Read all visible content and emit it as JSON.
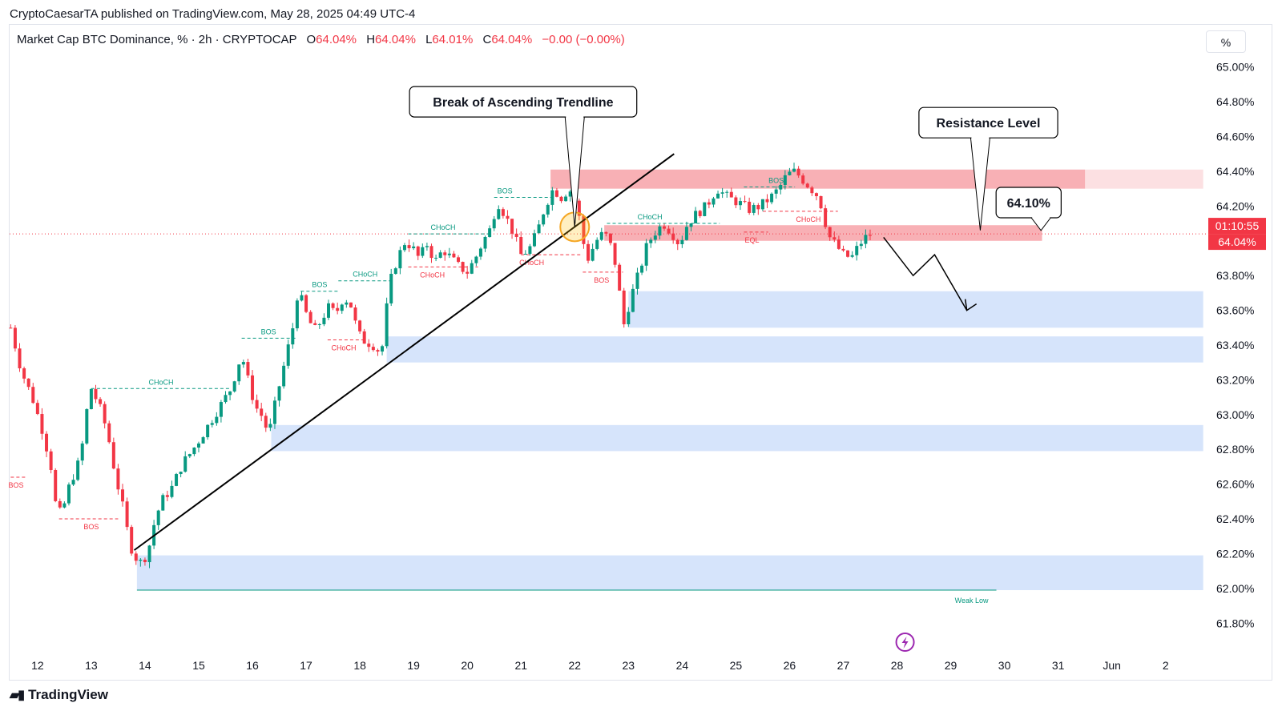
{
  "header": {
    "published": "CryptoCaesarTA published on TradingView.com, May 28, 2025 04:49 UTC-4"
  },
  "legend": {
    "symbol": "Market Cap BTC Dominance, % · 2h · CRYPTOCAP",
    "o_key": "O",
    "o": "64.04%",
    "h_key": "H",
    "h": "64.04%",
    "l_key": "L",
    "l": "64.01%",
    "c_key": "C",
    "c": "64.04%",
    "change": "−0.00 (−0.00%)"
  },
  "scale_button": "%",
  "footer": {
    "logo_text": "TradingView"
  },
  "colors": {
    "up": "#089981",
    "down": "#f23645",
    "supply_zone": "#f7a7ad",
    "demand_zone": "#d6e4fb",
    "trendline": "#000000"
  },
  "chart_data": {
    "type": "candlestick",
    "symbol": "CRYPTOCAP:BTC.D",
    "interval": "2h",
    "ylim": [
      61.7,
      65.1
    ],
    "y_ticks": [
      "65.00%",
      "64.80%",
      "64.60%",
      "64.40%",
      "64.20%",
      "64.00%",
      "63.80%",
      "63.60%",
      "63.40%",
      "63.20%",
      "63.00%",
      "62.80%",
      "62.60%",
      "62.40%",
      "62.20%",
      "62.00%",
      "61.80%"
    ],
    "y_tick_values": [
      65.0,
      64.8,
      64.6,
      64.4,
      64.2,
      64.0,
      63.8,
      63.6,
      63.4,
      63.2,
      63.0,
      62.8,
      62.6,
      62.4,
      62.2,
      62.0,
      61.8
    ],
    "x_ticks": [
      "12",
      "13",
      "14",
      "15",
      "16",
      "17",
      "18",
      "19",
      "20",
      "21",
      "22",
      "23",
      "24",
      "25",
      "26",
      "27",
      "28",
      "29",
      "30",
      "31",
      "Jun",
      "2"
    ],
    "x_tick_days": [
      12,
      13,
      14,
      15,
      16,
      17,
      18,
      19,
      20,
      21,
      22,
      23,
      24,
      25,
      26,
      27,
      28,
      29,
      30,
      31,
      32,
      33
    ],
    "xlim": [
      11.48,
      33.75
    ],
    "price_path": [
      [
        11.5,
        63.5
      ],
      [
        11.7,
        63.25
      ],
      [
        11.9,
        63.1
      ],
      [
        12.1,
        62.9
      ],
      [
        12.25,
        62.7
      ],
      [
        12.35,
        62.45
      ],
      [
        12.45,
        62.43
      ],
      [
        12.6,
        62.6
      ],
      [
        12.8,
        62.75
      ],
      [
        12.95,
        63.1
      ],
      [
        13.0,
        63.15
      ],
      [
        13.15,
        63.05
      ],
      [
        13.3,
        62.9
      ],
      [
        13.45,
        62.65
      ],
      [
        13.6,
        62.45
      ],
      [
        13.72,
        62.25
      ],
      [
        13.82,
        62.18
      ],
      [
        13.92,
        62.15
      ],
      [
        14.05,
        62.2
      ],
      [
        14.15,
        62.35
      ],
      [
        14.3,
        62.5
      ],
      [
        14.5,
        62.58
      ],
      [
        14.7,
        62.72
      ],
      [
        14.85,
        62.78
      ],
      [
        15.0,
        62.85
      ],
      [
        15.2,
        62.95
      ],
      [
        15.4,
        63.05
      ],
      [
        15.6,
        63.15
      ],
      [
        15.8,
        63.35
      ],
      [
        15.9,
        63.22
      ],
      [
        16.05,
        63.05
      ],
      [
        16.2,
        62.98
      ],
      [
        16.3,
        62.88
      ],
      [
        16.45,
        63.1
      ],
      [
        16.6,
        63.3
      ],
      [
        16.75,
        63.5
      ],
      [
        16.85,
        63.72
      ],
      [
        17.0,
        63.58
      ],
      [
        17.15,
        63.48
      ],
      [
        17.3,
        63.55
      ],
      [
        17.4,
        63.62
      ],
      [
        17.55,
        63.58
      ],
      [
        17.7,
        63.68
      ],
      [
        17.85,
        63.62
      ],
      [
        17.95,
        63.48
      ],
      [
        18.05,
        63.43
      ],
      [
        18.25,
        63.4
      ],
      [
        18.4,
        63.35
      ],
      [
        18.55,
        63.75
      ],
      [
        18.7,
        63.9
      ],
      [
        18.85,
        64.0
      ],
      [
        19.0,
        63.95
      ],
      [
        19.1,
        63.9
      ],
      [
        19.25,
        63.98
      ],
      [
        19.4,
        63.88
      ],
      [
        19.55,
        63.95
      ],
      [
        19.7,
        63.9
      ],
      [
        19.85,
        63.85
      ],
      [
        20.0,
        63.82
      ],
      [
        20.15,
        63.9
      ],
      [
        20.3,
        64.0
      ],
      [
        20.45,
        64.08
      ],
      [
        20.55,
        64.23
      ],
      [
        20.7,
        64.15
      ],
      [
        20.85,
        64.05
      ],
      [
        21.0,
        63.92
      ],
      [
        21.15,
        63.95
      ],
      [
        21.3,
        64.05
      ],
      [
        21.45,
        64.2
      ],
      [
        21.6,
        64.3
      ],
      [
        21.75,
        64.25
      ],
      [
        21.9,
        64.3
      ],
      [
        22.05,
        64.2
      ],
      [
        22.15,
        64.0
      ],
      [
        22.25,
        63.9
      ],
      [
        22.4,
        64.0
      ],
      [
        22.55,
        64.05
      ],
      [
        22.7,
        63.95
      ],
      [
        22.8,
        63.8
      ],
      [
        22.9,
        63.5
      ],
      [
        23.05,
        63.68
      ],
      [
        23.2,
        63.82
      ],
      [
        23.35,
        63.98
      ],
      [
        23.5,
        64.05
      ],
      [
        23.65,
        64.1
      ],
      [
        23.8,
        64.05
      ],
      [
        23.95,
        63.98
      ],
      [
        24.1,
        64.1
      ],
      [
        24.25,
        64.15
      ],
      [
        24.45,
        64.2
      ],
      [
        24.65,
        64.3
      ],
      [
        24.85,
        64.25
      ],
      [
        25.05,
        64.22
      ],
      [
        25.25,
        64.18
      ],
      [
        25.45,
        64.2
      ],
      [
        25.65,
        64.25
      ],
      [
        25.8,
        64.3
      ],
      [
        25.95,
        64.38
      ],
      [
        26.1,
        64.4
      ],
      [
        26.25,
        64.35
      ],
      [
        26.4,
        64.3
      ],
      [
        26.55,
        64.25
      ],
      [
        26.65,
        64.12
      ],
      [
        26.75,
        64.02
      ],
      [
        26.85,
        63.98
      ],
      [
        27.0,
        63.92
      ],
      [
        27.15,
        63.9
      ],
      [
        27.3,
        63.98
      ],
      [
        27.45,
        64.03
      ],
      [
        27.55,
        64.04
      ]
    ],
    "trendline": {
      "from": [
        13.8,
        62.22
      ],
      "to": [
        23.85,
        64.5
      ]
    },
    "break_marker": {
      "x": 22.0,
      "y": 64.08
    },
    "supply_zones": [
      {
        "x0": 21.55,
        "x1": 31.5,
        "y0": 64.3,
        "y1": 64.41
      },
      {
        "x0": 31.5,
        "x1": 33.7,
        "y0": 64.3,
        "y1": 64.41,
        "faded": true
      },
      {
        "x0": 22.55,
        "x1": 30.7,
        "y0": 64.0,
        "y1": 64.09
      }
    ],
    "demand_zones": [
      {
        "x0": 23.0,
        "x1": 33.7,
        "y0": 63.5,
        "y1": 63.71
      },
      {
        "x0": 18.5,
        "x1": 33.7,
        "y0": 63.3,
        "y1": 63.45
      },
      {
        "x0": 16.35,
        "x1": 33.7,
        "y0": 62.79,
        "y1": 62.94
      },
      {
        "x0": 13.85,
        "x1": 33.7,
        "y0": 61.99,
        "y1": 62.19
      }
    ],
    "weak_low_line": {
      "x0": 13.85,
      "x1": 29.85,
      "y": 61.99
    },
    "current_price_line": 64.04,
    "structure_labels": [
      {
        "text": "BOS",
        "x": 11.6,
        "y": 62.64,
        "side": "down",
        "x0": 11.5,
        "x1": 11.8
      },
      {
        "text": "BOS",
        "x": 13.0,
        "y": 62.4,
        "side": "down",
        "x0": 12.4,
        "x1": 13.5
      },
      {
        "text": "CHoCH",
        "x": 14.3,
        "y": 63.15,
        "side": "up",
        "x0": 13.0,
        "x1": 15.6
      },
      {
        "text": "BOS",
        "x": 16.3,
        "y": 63.44,
        "side": "up",
        "x0": 15.8,
        "x1": 16.8
      },
      {
        "text": "BOS",
        "x": 17.25,
        "y": 63.71,
        "side": "up",
        "x0": 16.9,
        "x1": 17.6
      },
      {
        "text": "CHoCH",
        "x": 18.1,
        "y": 63.77,
        "side": "up",
        "x0": 17.6,
        "x1": 18.6
      },
      {
        "text": "CHoCH",
        "x": 17.7,
        "y": 63.43,
        "side": "down",
        "x0": 17.4,
        "x1": 18.1
      },
      {
        "text": "CHoCH",
        "x": 19.55,
        "y": 64.04,
        "side": "up",
        "x0": 18.9,
        "x1": 20.45
      },
      {
        "text": "CHoCH",
        "x": 19.35,
        "y": 63.85,
        "side": "down",
        "x0": 18.9,
        "x1": 20.2
      },
      {
        "text": "BOS",
        "x": 20.7,
        "y": 64.25,
        "side": "up",
        "x0": 20.5,
        "x1": 21.6
      },
      {
        "text": "CHoCH",
        "x": 21.2,
        "y": 63.92,
        "side": "down",
        "x0": 21.0,
        "x1": 22.15
      },
      {
        "text": "BOS",
        "x": 22.5,
        "y": 63.82,
        "side": "down",
        "x0": 22.15,
        "x1": 22.9
      },
      {
        "text": "CHoCH",
        "x": 23.4,
        "y": 64.1,
        "side": "up",
        "x0": 22.6,
        "x1": 24.7
      },
      {
        "text": "BOS",
        "x": 25.75,
        "y": 64.31,
        "side": "up",
        "x0": 25.15,
        "x1": 26.1
      },
      {
        "text": "CHoCH",
        "x": 26.35,
        "y": 64.17,
        "side": "down",
        "x0": 25.5,
        "x1": 26.9
      },
      {
        "text": "EQL",
        "x": 25.3,
        "y": 64.05,
        "side": "down",
        "x0": 25.15,
        "x1": 25.6
      }
    ],
    "annotations": [
      {
        "text": "Break of Ascending Trendline",
        "x": 21.04,
        "y": 64.8,
        "pointer_to": [
          22.0,
          64.08
        ]
      },
      {
        "text": "Resistance Level",
        "x": 29.7,
        "y": 64.68,
        "pointer_to": [
          29.55,
          64.06
        ]
      },
      {
        "text": "64.10%",
        "x": 30.45,
        "y": 64.22,
        "pointer_to": [
          30.68,
          64.06
        ]
      }
    ],
    "weak_low_label": "Weak Low",
    "projection_path": [
      [
        27.75,
        64.02
      ],
      [
        28.3,
        63.8
      ],
      [
        28.7,
        63.92
      ],
      [
        29.3,
        63.6
      ]
    ],
    "price_labels": [
      {
        "text": "01:10:55",
        "y": 64.04,
        "offset": -10
      },
      {
        "text": "64.04%",
        "y": 64.04,
        "offset": 10
      }
    ]
  }
}
